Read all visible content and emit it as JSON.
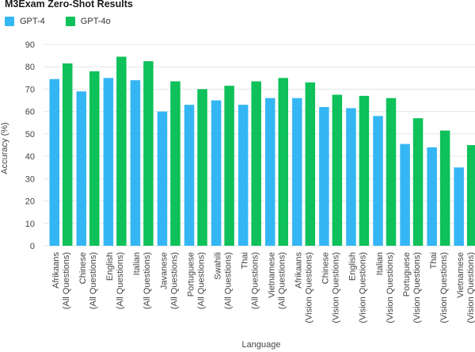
{
  "chart_data": {
    "type": "bar",
    "title": "M3Exam Zero-Shot Results",
    "xlabel": "Language",
    "ylabel": "Accuracy (%)",
    "ylim": [
      0,
      90
    ],
    "yticks": [
      0,
      10,
      20,
      30,
      40,
      50,
      60,
      70,
      80,
      90
    ],
    "grid": true,
    "legend": "top-left",
    "categories": [
      [
        "Afrikaans",
        "(All Questions)"
      ],
      [
        "Chinese",
        "(All Questions)"
      ],
      [
        "English",
        "(All Questions)"
      ],
      [
        "Italian",
        "(All Questions)"
      ],
      [
        "Javanese",
        "(All Questions)"
      ],
      [
        "Portuguese",
        "(All Questions)"
      ],
      [
        "Swahili",
        "(All Questions)"
      ],
      [
        "Thai",
        "(All Questions)"
      ],
      [
        "Vietnamese",
        "(All Questions)"
      ],
      [
        "Afrikaans",
        "(Vision Questions)"
      ],
      [
        "Chinese",
        "(Vision Questions)"
      ],
      [
        "English",
        "(Vision Questions)"
      ],
      [
        "Italian",
        "(Vision Questions)"
      ],
      [
        "Portuguese",
        "(Vision Questions)"
      ],
      [
        "Thai",
        "(Vision Questions)"
      ],
      [
        "Vietnamese",
        "(Vision Questions)"
      ]
    ],
    "series": [
      {
        "name": "GPT-4",
        "color": "#35b6f4",
        "values": [
          74.5,
          69,
          75,
          74,
          60,
          63,
          65,
          63,
          66,
          66,
          62,
          61.5,
          58,
          45.5,
          44,
          35
        ]
      },
      {
        "name": "GPT-4o",
        "color": "#0ec15a",
        "values": [
          81.5,
          78,
          84.5,
          82.5,
          73.5,
          70,
          71.5,
          73.5,
          75,
          73,
          67.5,
          67,
          66,
          57,
          51.5,
          45
        ]
      }
    ]
  }
}
